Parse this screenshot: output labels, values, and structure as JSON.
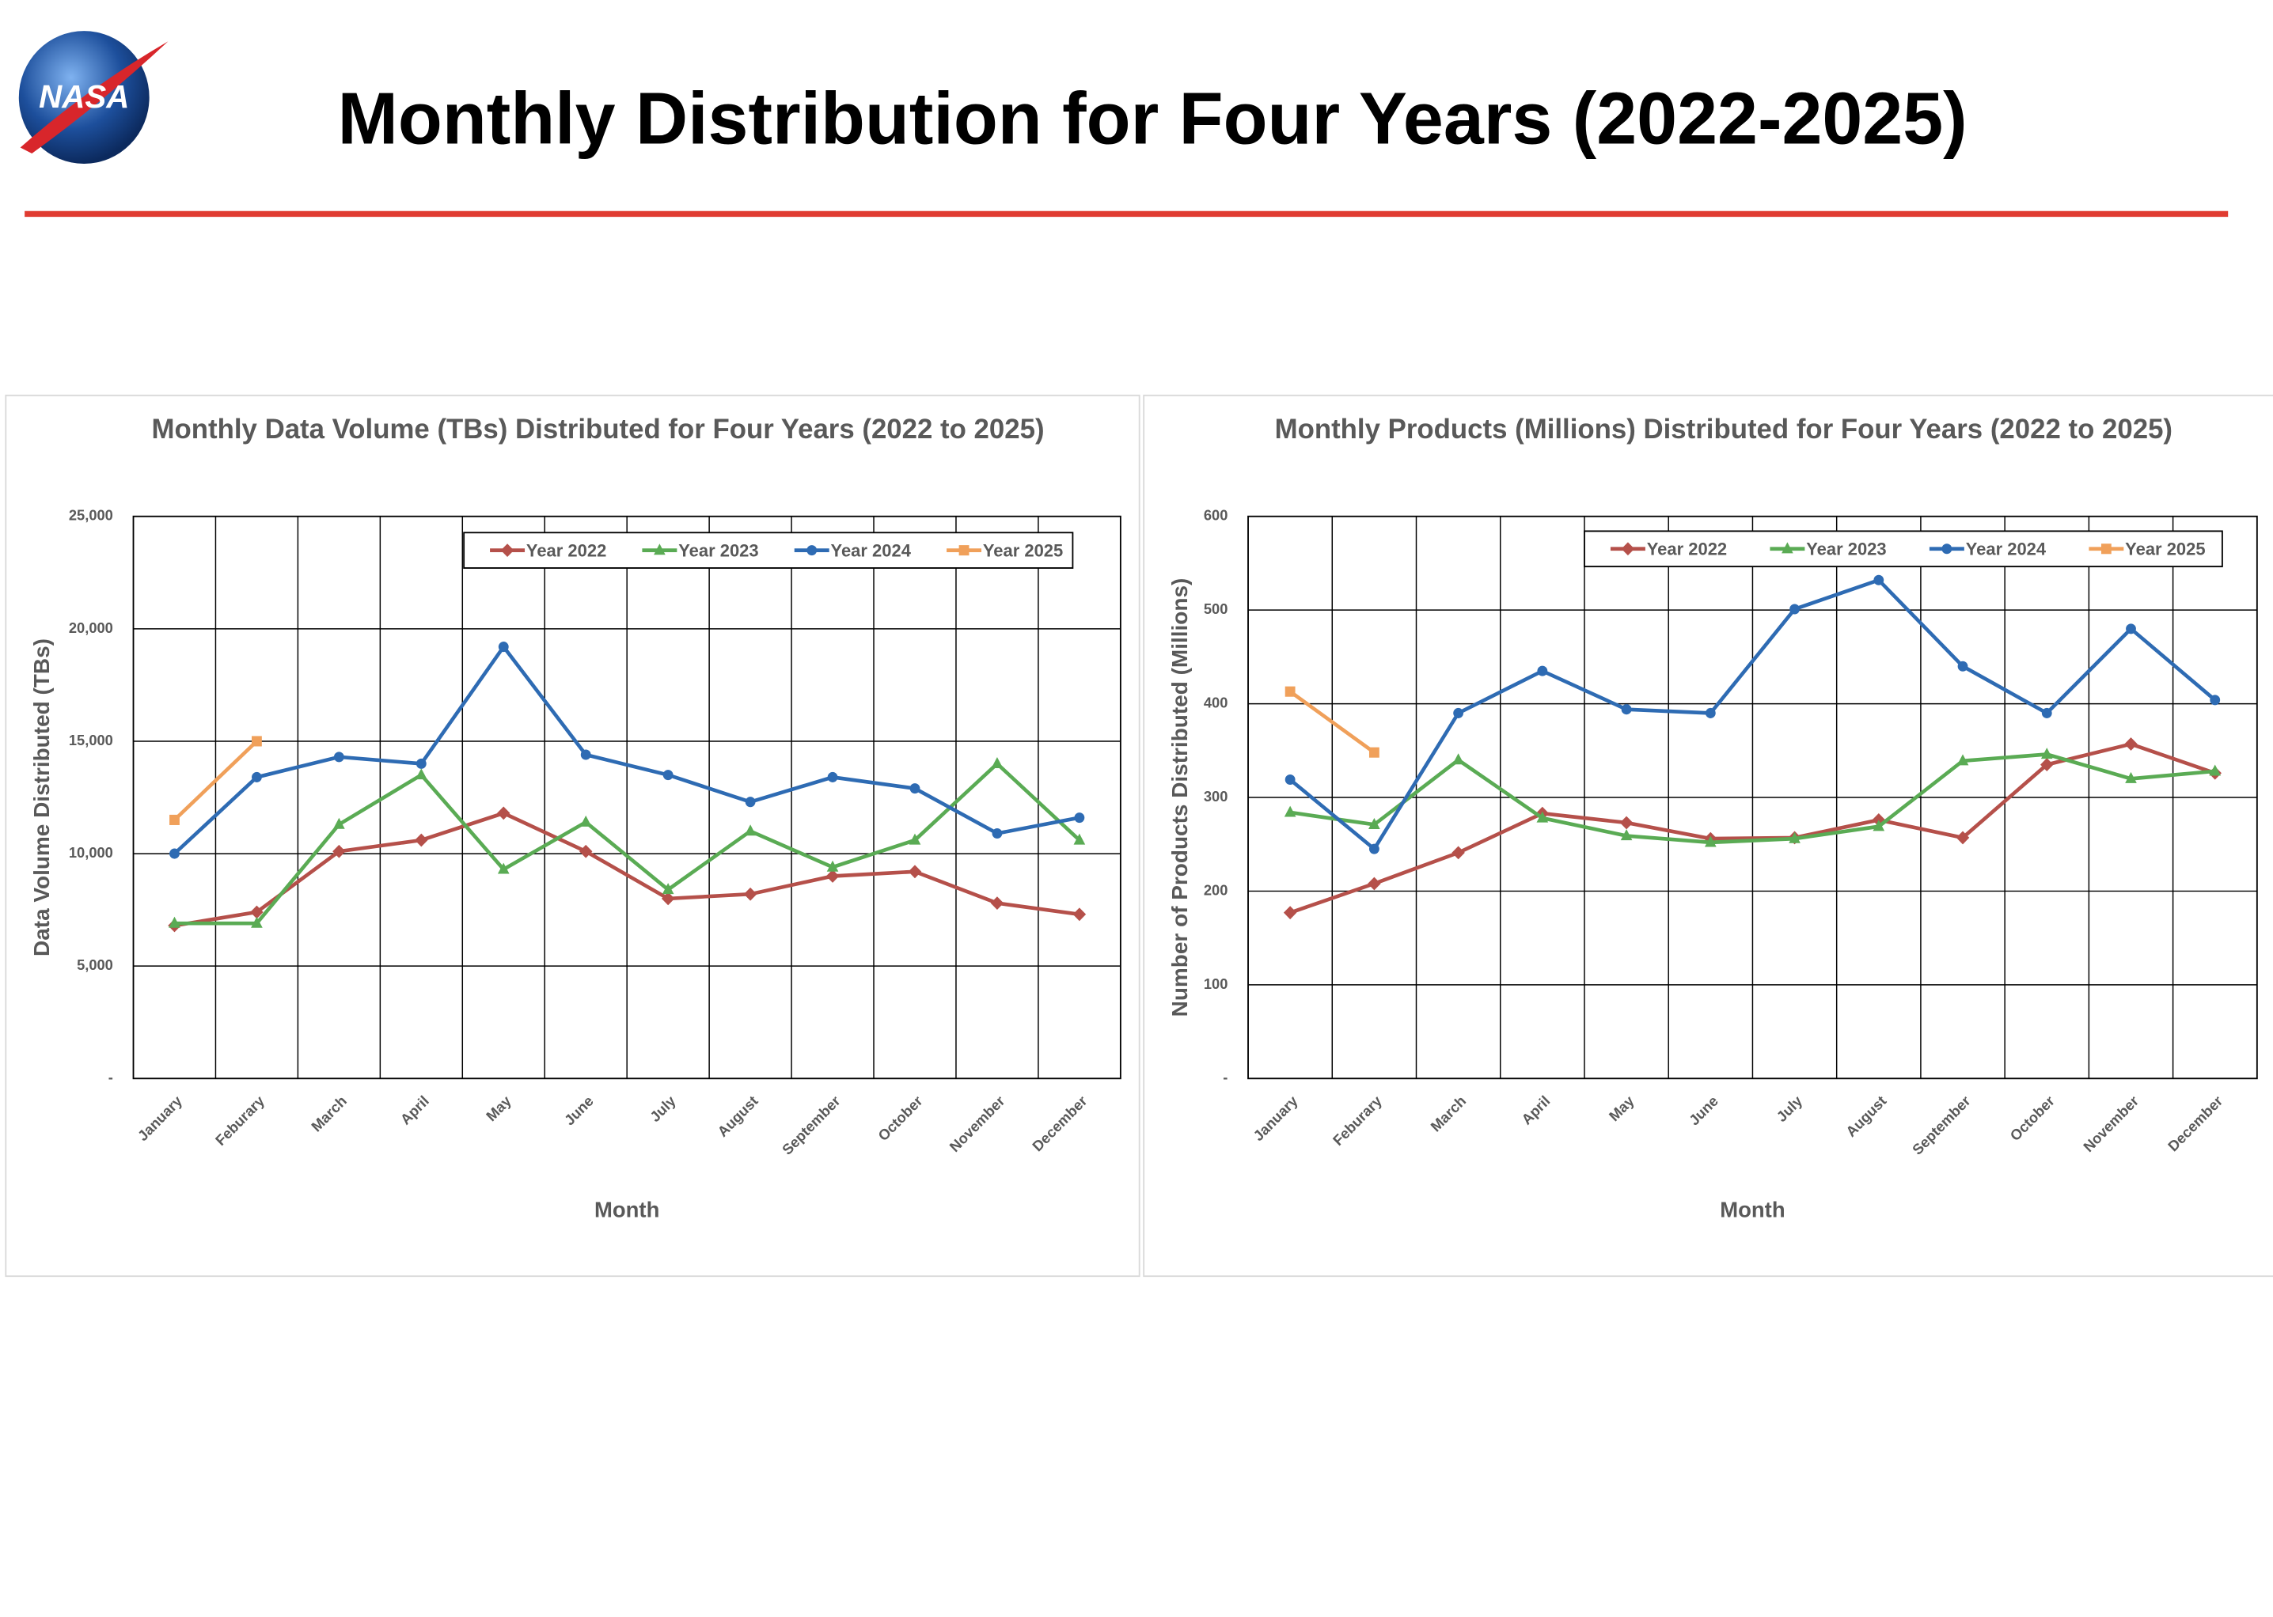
{
  "logo": "NASA",
  "title": "Monthly Distribution for Four Years (2022-2025)",
  "chart_data": [
    {
      "type": "line",
      "title": "Monthly Data Volume (TBs) Distributed for Four Years (2022 to 2025)",
      "xlabel": "Month",
      "ylabel": "Data Volume Distributed (TBs)",
      "categories": [
        "January",
        "Feburary",
        "March",
        "April",
        "May",
        "June",
        "July",
        "August",
        "September",
        "October",
        "November",
        "December"
      ],
      "ylim": [
        0,
        25000
      ],
      "yticks": [
        {
          "value": 0,
          "label": "-"
        },
        {
          "value": 5000,
          "label": "5,000"
        },
        {
          "value": 10000,
          "label": "10,000"
        },
        {
          "value": 15000,
          "label": "15,000"
        },
        {
          "value": 20000,
          "label": "20,000"
        },
        {
          "value": 25000,
          "label": "25,000"
        }
      ],
      "grid": true,
      "series": [
        {
          "name": "Year 2022",
          "color": "#b5504a",
          "marker": "diamond",
          "values": [
            6800,
            7400,
            10100,
            10600,
            11800,
            10100,
            8000,
            8200,
            9000,
            9200,
            7800,
            7300
          ]
        },
        {
          "name": "Year 2023",
          "color": "#5aab54",
          "marker": "triangle",
          "values": [
            6900,
            6900,
            11300,
            13500,
            9300,
            11400,
            8400,
            11000,
            9400,
            10600,
            14000,
            10600
          ]
        },
        {
          "name": "Year 2024",
          "color": "#2e6bb3",
          "marker": "circle",
          "values": [
            10000,
            13400,
            14300,
            14000,
            19200,
            14400,
            13500,
            12300,
            13400,
            12900,
            10900,
            11600
          ]
        },
        {
          "name": "Year 2025",
          "color": "#f0a05a",
          "marker": "square",
          "values": [
            11500,
            15000,
            null,
            null,
            null,
            null,
            null,
            null,
            null,
            null,
            null,
            null
          ]
        }
      ]
    },
    {
      "type": "line",
      "title": "Monthly Products (Millions) Distributed for Four Years (2022 to 2025)",
      "xlabel": "Month",
      "ylabel": "Number of Products Distributed (Millions)",
      "categories": [
        "January",
        "Feburary",
        "March",
        "April",
        "May",
        "June",
        "July",
        "August",
        "September",
        "October",
        "November",
        "December"
      ],
      "ylim": [
        0,
        600
      ],
      "yticks": [
        {
          "value": 0,
          "label": "-"
        },
        100,
        200,
        300,
        400,
        500,
        600
      ],
      "grid": true,
      "series": [
        {
          "name": "Year 2022",
          "color": "#b5504a",
          "marker": "diamond",
          "values": [
            177,
            208,
            241,
            283,
            273,
            256,
            257,
            276,
            257,
            335,
            357,
            326
          ]
        },
        {
          "name": "Year 2023",
          "color": "#5aab54",
          "marker": "triangle",
          "values": [
            284,
            271,
            340,
            278,
            259,
            252,
            256,
            269,
            339,
            346,
            320,
            328
          ]
        },
        {
          "name": "Year 2024",
          "color": "#2e6bb3",
          "marker": "circle",
          "values": [
            319,
            245,
            390,
            435,
            394,
            390,
            501,
            532,
            440,
            390,
            480,
            404
          ]
        },
        {
          "name": "Year 2025",
          "color": "#f0a05a",
          "marker": "square",
          "values": [
            413,
            348,
            null,
            null,
            null,
            null,
            null,
            null,
            null,
            null,
            null,
            null
          ]
        }
      ]
    }
  ]
}
